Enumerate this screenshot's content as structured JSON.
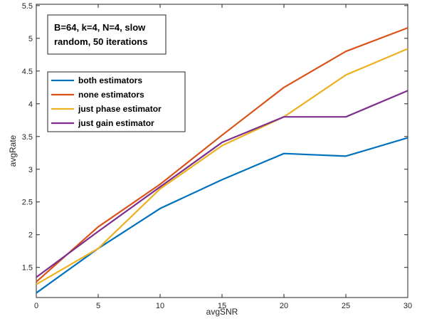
{
  "chart_data": {
    "type": "line",
    "xlabel": "avgSNR",
    "ylabel": "avgRate",
    "xlim": [
      0,
      30
    ],
    "ylim": [
      1.04,
      5.52
    ],
    "xticks": [
      "0",
      "5",
      "10",
      "15",
      "20",
      "25",
      "30"
    ],
    "yticks": [
      "1.5",
      "2",
      "2.5",
      "3",
      "3.5",
      "4",
      "4.5",
      "5",
      "5.5"
    ],
    "grid": false,
    "legend_position": "top-left",
    "annotation": [
      "B=64, k=4, N=4, slow",
      "random, 50 iterations"
    ],
    "x": [
      0,
      5,
      10,
      15,
      20,
      25,
      30
    ],
    "series": [
      {
        "name": "both estimators",
        "color": "#0072BD",
        "values": [
          1.11,
          1.79,
          2.4,
          2.84,
          3.24,
          3.2,
          3.48
        ]
      },
      {
        "name": "none estimators",
        "color": "#D95319",
        "values": [
          1.28,
          2.12,
          2.77,
          3.52,
          4.25,
          4.8,
          5.16
        ]
      },
      {
        "name": "just phase estimator",
        "color": "#EDB120",
        "values": [
          1.24,
          1.79,
          2.7,
          3.36,
          3.8,
          4.44,
          4.84
        ]
      },
      {
        "name": "just gain estimator",
        "color": "#7E2F8E",
        "values": [
          1.35,
          2.05,
          2.73,
          3.41,
          3.8,
          3.8,
          4.2
        ]
      }
    ]
  }
}
